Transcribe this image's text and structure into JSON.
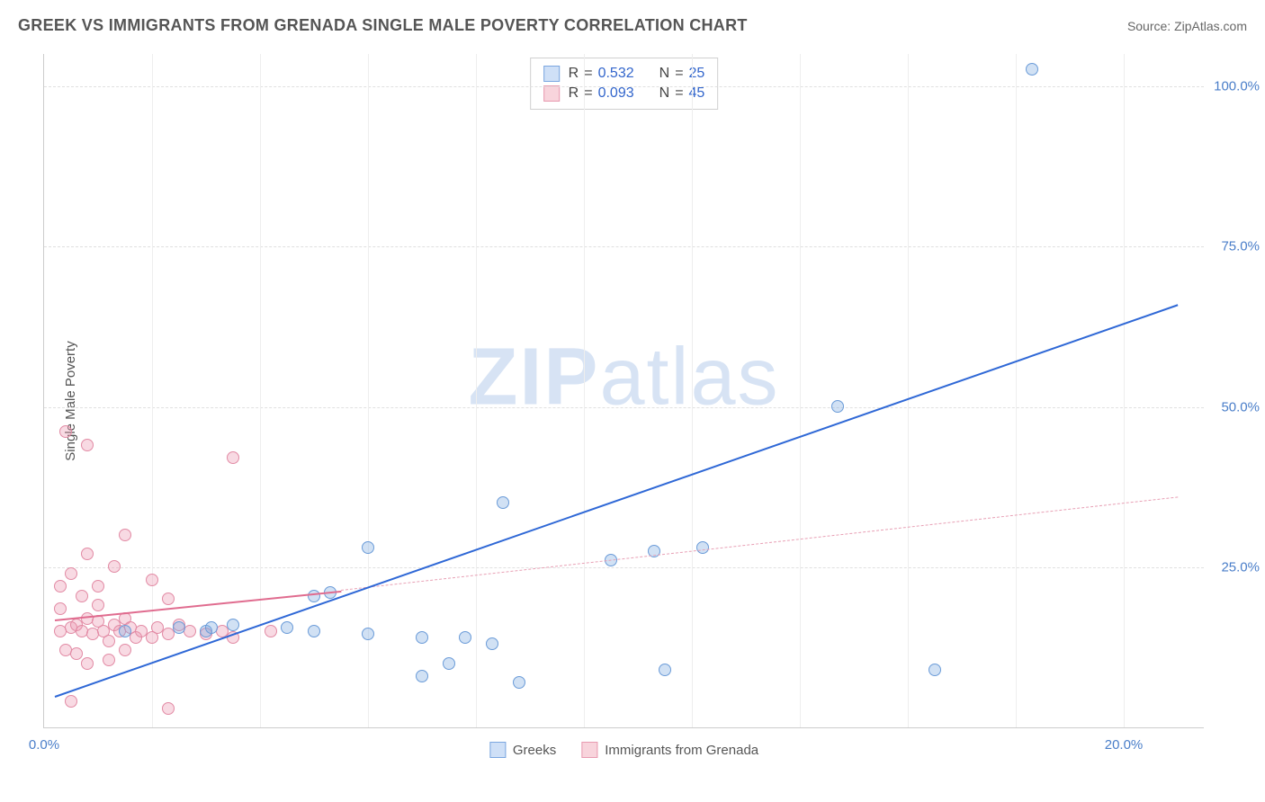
{
  "header": {
    "title": "GREEK VS IMMIGRANTS FROM GRENADA SINGLE MALE POVERTY CORRELATION CHART",
    "source": "Source: ZipAtlas.com"
  },
  "watermark": {
    "zip": "ZIP",
    "atlas": "atlas"
  },
  "axes": {
    "ylabel": "Single Male Poverty",
    "xlim": [
      0,
      21.5
    ],
    "ylim": [
      0,
      105
    ],
    "yticks": [
      {
        "v": 25,
        "label": "25.0%"
      },
      {
        "v": 50,
        "label": "50.0%"
      },
      {
        "v": 75,
        "label": "75.0%"
      },
      {
        "v": 100,
        "label": "100.0%"
      }
    ],
    "xticks": [
      {
        "v": 0,
        "label": "0.0%"
      },
      {
        "v": 20,
        "label": "20.0%"
      }
    ],
    "grid_minor_x_step": 2,
    "grid_color": "#e0e0e0"
  },
  "stats": {
    "rows": [
      {
        "swatch_fill": "#cfe0f7",
        "swatch_border": "#7ba6e0",
        "R": "0.532",
        "N": "25"
      },
      {
        "swatch_fill": "#f8d4dc",
        "swatch_border": "#e89ab0",
        "R": "0.093",
        "N": "45"
      }
    ],
    "labels": {
      "R": "R",
      "N": "N",
      "eq": "="
    }
  },
  "legend": {
    "items": [
      {
        "label": "Greeks",
        "fill": "#cfe0f7",
        "border": "#7ba6e0"
      },
      {
        "label": "Immigrants from Grenada",
        "fill": "#f8d4dc",
        "border": "#e89ab0"
      }
    ]
  },
  "series": {
    "greeks": {
      "color_fill": "rgba(122,168,224,0.35)",
      "color_border": "#6a9bd8",
      "marker_size": 14,
      "points": [
        [
          18.3,
          102.5
        ],
        [
          14.7,
          50.0
        ],
        [
          8.5,
          35.0
        ],
        [
          11.3,
          27.5
        ],
        [
          12.2,
          28.0
        ],
        [
          10.5,
          26.0
        ],
        [
          5.0,
          20.5
        ],
        [
          5.3,
          21.0
        ],
        [
          4.5,
          15.5
        ],
        [
          5.0,
          15.0
        ],
        [
          6.0,
          14.5
        ],
        [
          7.0,
          14.0
        ],
        [
          7.0,
          8.0
        ],
        [
          7.5,
          10.0
        ],
        [
          7.8,
          14.0
        ],
        [
          8.3,
          13.0
        ],
        [
          11.5,
          9.0
        ],
        [
          8.8,
          7.0
        ],
        [
          16.5,
          9.0
        ],
        [
          3.0,
          15.0
        ],
        [
          2.5,
          15.5
        ],
        [
          3.1,
          15.5
        ],
        [
          3.5,
          16.0
        ],
        [
          1.5,
          15.0
        ],
        [
          6.0,
          28.0
        ]
      ],
      "regression": {
        "x1": 0.2,
        "y1": 5.0,
        "x2": 21.0,
        "y2": 66.0,
        "stroke": "#2f68d6",
        "width": 2.5,
        "dash": false
      }
    },
    "grenada": {
      "color_fill": "rgba(235,150,175,0.35)",
      "color_border": "#e28aa4",
      "marker_size": 14,
      "points": [
        [
          0.4,
          46.0
        ],
        [
          0.8,
          44.0
        ],
        [
          3.5,
          42.0
        ],
        [
          1.5,
          30.0
        ],
        [
          0.8,
          27.0
        ],
        [
          0.3,
          22.0
        ],
        [
          0.5,
          24.0
        ],
        [
          0.7,
          20.5
        ],
        [
          1.0,
          22.0
        ],
        [
          1.3,
          25.0
        ],
        [
          2.0,
          23.0
        ],
        [
          2.3,
          20.0
        ],
        [
          0.3,
          15.0
        ],
        [
          0.5,
          15.5
        ],
        [
          0.6,
          16.0
        ],
        [
          0.7,
          15.0
        ],
        [
          0.8,
          17.0
        ],
        [
          0.9,
          14.5
        ],
        [
          1.0,
          16.5
        ],
        [
          1.1,
          15.0
        ],
        [
          1.2,
          13.5
        ],
        [
          1.3,
          16.0
        ],
        [
          1.4,
          15.0
        ],
        [
          1.5,
          17.0
        ],
        [
          1.5,
          12.0
        ],
        [
          1.6,
          15.5
        ],
        [
          1.7,
          14.0
        ],
        [
          1.8,
          15.0
        ],
        [
          2.0,
          14.0
        ],
        [
          2.1,
          15.5
        ],
        [
          2.3,
          14.5
        ],
        [
          2.5,
          16.0
        ],
        [
          2.7,
          15.0
        ],
        [
          3.0,
          14.5
        ],
        [
          3.3,
          15.0
        ],
        [
          3.5,
          14.0
        ],
        [
          0.4,
          12.0
        ],
        [
          0.6,
          11.5
        ],
        [
          0.8,
          10.0
        ],
        [
          1.2,
          10.5
        ],
        [
          4.2,
          15.0
        ],
        [
          0.5,
          4.0
        ],
        [
          2.3,
          3.0
        ],
        [
          0.3,
          18.5
        ],
        [
          1.0,
          19.0
        ]
      ],
      "regression_solid": {
        "x1": 0.2,
        "y1": 17.0,
        "x2": 5.5,
        "y2": 21.5,
        "stroke": "#e06c8f",
        "width": 2.0,
        "dash": false
      },
      "regression_dash": {
        "x1": 5.5,
        "y1": 21.5,
        "x2": 21.0,
        "y2": 36.0,
        "stroke": "#e8a0b5",
        "width": 1.3,
        "dash": true
      }
    }
  }
}
